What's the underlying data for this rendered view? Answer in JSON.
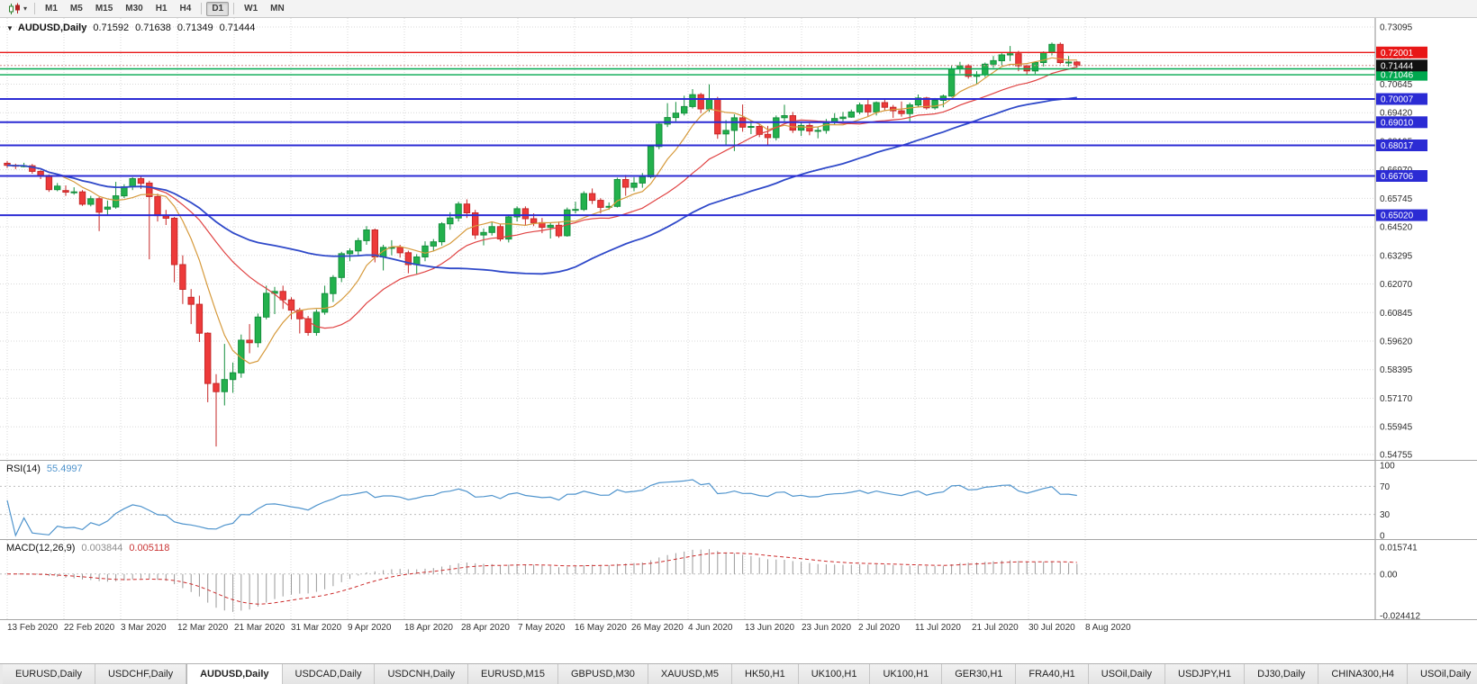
{
  "toolbar": {
    "chart_type_icon": "candlestick-chart",
    "caret": "▾",
    "timeframes": [
      "M1",
      "M5",
      "M15",
      "M30",
      "H1",
      "H4",
      "D1",
      "W1",
      "MN"
    ],
    "active_timeframe": "D1"
  },
  "chart": {
    "menu_arrow": "▼",
    "symbol_tf": "AUDUSD,Daily",
    "ohlc": {
      "o": "0.71592",
      "h": "0.71638",
      "l": "0.71349",
      "c": "0.71444"
    },
    "bid": "0.71444",
    "bull_color": "#23b14d",
    "bear_color": "#ed3a3a",
    "price_axis": {
      "max": 0.73095,
      "min": 0.54755,
      "ticks": [
        "0.73095",
        "0.71870",
        "0.70645",
        "0.69420",
        "0.68195",
        "0.66970",
        "0.65745",
        "0.64520",
        "0.63295",
        "0.62070",
        "0.60845",
        "0.59620",
        "0.58395",
        "0.57170",
        "0.55945",
        "0.54755"
      ]
    },
    "levels": [
      {
        "price": 0.72001,
        "label": "0.72001",
        "color": "#e81717",
        "width": 1.4
      },
      {
        "price": 0.713,
        "label": "",
        "color": "#00a84f",
        "width": 1.4
      },
      {
        "price": 0.71046,
        "label": "0.71046",
        "color": "#00a84f",
        "width": 1.4
      },
      {
        "price": 0.70007,
        "label": "0.70007",
        "color": "#2b2bd4",
        "width": 2
      },
      {
        "price": 0.6901,
        "label": "0.69010",
        "color": "#2b2bd4",
        "width": 2
      },
      {
        "price": 0.68017,
        "label": "0.68017",
        "color": "#2b2bd4",
        "width": 2
      },
      {
        "price": 0.66706,
        "label": "0.66706",
        "color": "#2b2bd4",
        "width": 2
      },
      {
        "price": 0.6502,
        "label": "0.65020",
        "color": "#2b2bd4",
        "width": 2
      }
    ],
    "mas": [
      {
        "period": 7,
        "color": "#d69a3c",
        "width": 1.2,
        "name": "fast"
      },
      {
        "period": 18,
        "color": "#e04343",
        "width": 1.2,
        "name": "medium"
      },
      {
        "period": 45,
        "color": "#2f49c9",
        "width": 1.8,
        "name": "slow"
      }
    ]
  },
  "rsi": {
    "label": "RSI(14)",
    "value": "55.4997",
    "period": 14,
    "color": "#4f94cd",
    "axis_labels": [
      "100",
      "70",
      "30",
      "0"
    ],
    "level_lines": [
      70,
      30
    ]
  },
  "macd": {
    "label": "MACD(12,26,9)",
    "value_main": "0.003844",
    "value_signal": "0.005118",
    "hist_color": "#9a9a9a",
    "signal_color": "#cc2a2a",
    "axis_labels": [
      "0.015741",
      "0.00",
      "-0.024412"
    ],
    "scale_max": 0.015741,
    "scale_min": -0.024412
  },
  "tabs": {
    "active_index": 2,
    "items": [
      "EURUSD,Daily",
      "USDCHF,Daily",
      "AUDUSD,Daily",
      "USDCAD,Daily",
      "USDCNH,Daily",
      "EURUSD,M15",
      "GBPUSD,M30",
      "XAUUSD,M5",
      "HK50,H1",
      "UK100,H1",
      "UK100,H1",
      "GER30,H1",
      "FRA40,H1",
      "USOil,Daily",
      "USDJPY,H1",
      "DJ30,Daily",
      "CHINA300,H4",
      "USOil,Daily"
    ]
  },
  "chart_data": {
    "type": "candlestick",
    "title": "AUDUSD,Daily",
    "symbol": "AUDUSD",
    "timeframe": "Daily",
    "ylim": [
      0.54755,
      0.73095
    ],
    "current_bar": {
      "open": 0.71592,
      "high": 0.71638,
      "low": 0.71349,
      "close": 0.71444
    },
    "x_ticks": [
      "13 Feb 2020",
      "22 Feb 2020",
      "3 Mar 2020",
      "12 Mar 2020",
      "21 Mar 2020",
      "31 Mar 2020",
      "9 Apr 2020",
      "18 Apr 2020",
      "28 Apr 2020",
      "7 May 2020",
      "16 May 2020",
      "26 May 2020",
      "4 Jun 2020",
      "13 Jun 2020",
      "23 Jun 2020",
      "2 Jul 2020",
      "11 Jul 2020",
      "21 Jul 2020",
      "30 Jul 2020",
      "8 Aug 2020"
    ],
    "indicators": {
      "rsi": {
        "period": 14,
        "last": 55.4997
      },
      "macd": {
        "fast": 12,
        "slow": 26,
        "signal": 9,
        "last_main": 0.003844,
        "last_signal": 0.005118
      }
    },
    "candles": [
      [
        0.6725,
        0.6735,
        0.6705,
        0.6716
      ],
      [
        0.6716,
        0.6723,
        0.67,
        0.6713
      ],
      [
        0.6713,
        0.6727,
        0.6707,
        0.6714
      ],
      [
        0.6714,
        0.6722,
        0.668,
        0.669
      ],
      [
        0.669,
        0.6695,
        0.6657,
        0.6673
      ],
      [
        0.6673,
        0.6677,
        0.6602,
        0.6612
      ],
      [
        0.6612,
        0.664,
        0.6605,
        0.6627
      ],
      [
        0.6608,
        0.663,
        0.6585,
        0.6601
      ],
      [
        0.6601,
        0.6622,
        0.659,
        0.6602
      ],
      [
        0.6602,
        0.661,
        0.6542,
        0.6549
      ],
      [
        0.6549,
        0.6585,
        0.654,
        0.6573
      ],
      [
        0.6573,
        0.658,
        0.6434,
        0.6515
      ],
      [
        0.6528,
        0.6565,
        0.6505,
        0.6537
      ],
      [
        0.6537,
        0.6645,
        0.653,
        0.6585
      ],
      [
        0.6585,
        0.6635,
        0.6576,
        0.6624
      ],
      [
        0.6624,
        0.6665,
        0.661,
        0.6659
      ],
      [
        0.6659,
        0.667,
        0.6615,
        0.6639
      ],
      [
        0.664,
        0.665,
        0.6313,
        0.6582
      ],
      [
        0.6582,
        0.6595,
        0.6475,
        0.65
      ],
      [
        0.65,
        0.6525,
        0.646,
        0.6489
      ],
      [
        0.6489,
        0.6495,
        0.6214,
        0.629
      ],
      [
        0.629,
        0.633,
        0.6121,
        0.6184
      ],
      [
        0.615,
        0.6185,
        0.6035,
        0.612
      ],
      [
        0.612,
        0.6157,
        0.5958,
        0.5996
      ],
      [
        0.5996,
        0.6,
        0.57,
        0.578
      ],
      [
        0.578,
        0.582,
        0.551,
        0.5745
      ],
      [
        0.5745,
        0.595,
        0.5686,
        0.5797
      ],
      [
        0.5797,
        0.587,
        0.574,
        0.5826
      ],
      [
        0.5826,
        0.599,
        0.5805,
        0.5966
      ],
      [
        0.5966,
        0.6035,
        0.591,
        0.5955
      ],
      [
        0.5955,
        0.608,
        0.5935,
        0.6065
      ],
      [
        0.6065,
        0.62,
        0.6055,
        0.6167
      ],
      [
        0.6167,
        0.6195,
        0.6078,
        0.6175
      ],
      [
        0.6175,
        0.62,
        0.61,
        0.6139
      ],
      [
        0.6139,
        0.615,
        0.6055,
        0.6095
      ],
      [
        0.6095,
        0.6105,
        0.5995,
        0.6058
      ],
      [
        0.6058,
        0.607,
        0.5985,
        0.5999
      ],
      [
        0.5999,
        0.6098,
        0.5985,
        0.6086
      ],
      [
        0.6086,
        0.62,
        0.6075,
        0.6166
      ],
      [
        0.6166,
        0.6245,
        0.613,
        0.6235
      ],
      [
        0.6235,
        0.6345,
        0.6215,
        0.6337
      ],
      [
        0.6337,
        0.636,
        0.6305,
        0.6349
      ],
      [
        0.6349,
        0.6405,
        0.633,
        0.6393
      ],
      [
        0.6393,
        0.6455,
        0.6375,
        0.6439
      ],
      [
        0.6439,
        0.6445,
        0.63,
        0.6323
      ],
      [
        0.6323,
        0.6375,
        0.6265,
        0.6364
      ],
      [
        0.6364,
        0.6395,
        0.633,
        0.6364
      ],
      [
        0.6364,
        0.6375,
        0.632,
        0.6341
      ],
      [
        0.6341,
        0.635,
        0.6253,
        0.629
      ],
      [
        0.629,
        0.6335,
        0.625,
        0.6323
      ],
      [
        0.6323,
        0.639,
        0.6305,
        0.637
      ],
      [
        0.637,
        0.64,
        0.635,
        0.6388
      ],
      [
        0.6388,
        0.6472,
        0.6372,
        0.6465
      ],
      [
        0.6465,
        0.6515,
        0.644,
        0.649
      ],
      [
        0.649,
        0.656,
        0.6475,
        0.655
      ],
      [
        0.655,
        0.657,
        0.649,
        0.6512
      ],
      [
        0.6512,
        0.6525,
        0.64,
        0.6417
      ],
      [
        0.6417,
        0.6445,
        0.6373,
        0.6428
      ],
      [
        0.6428,
        0.6475,
        0.6415,
        0.6453
      ],
      [
        0.6453,
        0.6465,
        0.639,
        0.64
      ],
      [
        0.64,
        0.6505,
        0.6385,
        0.6495
      ],
      [
        0.6495,
        0.654,
        0.6475,
        0.653
      ],
      [
        0.653,
        0.654,
        0.646,
        0.6487
      ],
      [
        0.6487,
        0.651,
        0.6455,
        0.647
      ],
      [
        0.647,
        0.649,
        0.6425,
        0.645
      ],
      [
        0.645,
        0.647,
        0.6402,
        0.6459
      ],
      [
        0.6459,
        0.6475,
        0.6405,
        0.6414
      ],
      [
        0.6414,
        0.6535,
        0.641,
        0.6525
      ],
      [
        0.6525,
        0.656,
        0.651,
        0.6527
      ],
      [
        0.6527,
        0.6605,
        0.652,
        0.6595
      ],
      [
        0.6595,
        0.6617,
        0.655,
        0.6566
      ],
      [
        0.6566,
        0.6575,
        0.651,
        0.6536
      ],
      [
        0.6536,
        0.6557,
        0.6525,
        0.654
      ],
      [
        0.654,
        0.6663,
        0.6535,
        0.6655
      ],
      [
        0.6655,
        0.6675,
        0.6585,
        0.6622
      ],
      [
        0.6622,
        0.6665,
        0.6605,
        0.664
      ],
      [
        0.664,
        0.6683,
        0.662,
        0.6667
      ],
      [
        0.6667,
        0.6805,
        0.666,
        0.6797
      ],
      [
        0.6797,
        0.69,
        0.6785,
        0.6893
      ],
      [
        0.6893,
        0.6983,
        0.688,
        0.6921
      ],
      [
        0.6921,
        0.6988,
        0.6905,
        0.694
      ],
      [
        0.694,
        0.7015,
        0.693,
        0.6968
      ],
      [
        0.6968,
        0.7043,
        0.696,
        0.7019
      ],
      [
        0.7019,
        0.7027,
        0.694,
        0.6958
      ],
      [
        0.6958,
        0.7063,
        0.6945,
        0.7
      ],
      [
        0.7,
        0.701,
        0.683,
        0.6851
      ],
      [
        0.6851,
        0.691,
        0.68,
        0.6866
      ],
      [
        0.6866,
        0.6935,
        0.6777,
        0.692
      ],
      [
        0.692,
        0.6977,
        0.686,
        0.688
      ],
      [
        0.688,
        0.691,
        0.685,
        0.6883
      ],
      [
        0.6883,
        0.6895,
        0.6837,
        0.6849
      ],
      [
        0.6849,
        0.6885,
        0.6805,
        0.6835
      ],
      [
        0.6835,
        0.693,
        0.6823,
        0.692
      ],
      [
        0.692,
        0.6976,
        0.6905,
        0.6929
      ],
      [
        0.6929,
        0.6945,
        0.6855,
        0.6867
      ],
      [
        0.6867,
        0.69,
        0.6842,
        0.6887
      ],
      [
        0.6887,
        0.6897,
        0.6845,
        0.6863
      ],
      [
        0.6863,
        0.688,
        0.6832,
        0.6866
      ],
      [
        0.6866,
        0.6915,
        0.6852,
        0.6903
      ],
      [
        0.6903,
        0.694,
        0.689,
        0.6917
      ],
      [
        0.6917,
        0.6945,
        0.6905,
        0.6923
      ],
      [
        0.6923,
        0.6955,
        0.692,
        0.6945
      ],
      [
        0.6945,
        0.6985,
        0.6935,
        0.6975
      ],
      [
        0.6975,
        0.6998,
        0.6925,
        0.6945
      ],
      [
        0.6945,
        0.699,
        0.693,
        0.6985
      ],
      [
        0.6985,
        0.7,
        0.695,
        0.6965
      ],
      [
        0.6965,
        0.6975,
        0.692,
        0.695
      ],
      [
        0.695,
        0.699,
        0.6925,
        0.6938
      ],
      [
        0.6938,
        0.6985,
        0.69,
        0.6975
      ],
      [
        0.6975,
        0.702,
        0.6965,
        0.7005
      ],
      [
        0.7005,
        0.701,
        0.6955,
        0.6963
      ],
      [
        0.6963,
        0.7005,
        0.6955,
        0.6995
      ],
      [
        0.6995,
        0.702,
        0.6965,
        0.7013
      ],
      [
        0.7013,
        0.7145,
        0.701,
        0.713
      ],
      [
        0.713,
        0.716,
        0.711,
        0.7143
      ],
      [
        0.7143,
        0.715,
        0.7088,
        0.7098
      ],
      [
        0.7098,
        0.712,
        0.7063,
        0.7105
      ],
      [
        0.7105,
        0.7157,
        0.7095,
        0.715
      ],
      [
        0.715,
        0.7185,
        0.7135,
        0.7165
      ],
      [
        0.7165,
        0.7197,
        0.7145,
        0.719
      ],
      [
        0.719,
        0.7228,
        0.7163,
        0.7195
      ],
      [
        0.7195,
        0.7207,
        0.712,
        0.7143
      ],
      [
        0.7143,
        0.7148,
        0.7103,
        0.7121
      ],
      [
        0.7121,
        0.7162,
        0.7108,
        0.7157
      ],
      [
        0.7157,
        0.7205,
        0.714,
        0.72
      ],
      [
        0.72,
        0.7243,
        0.7188,
        0.7235
      ],
      [
        0.7235,
        0.7243,
        0.715,
        0.7157
      ],
      [
        0.7157,
        0.7185,
        0.714,
        0.7159
      ],
      [
        0.71592,
        0.71638,
        0.71349,
        0.71444
      ]
    ]
  }
}
